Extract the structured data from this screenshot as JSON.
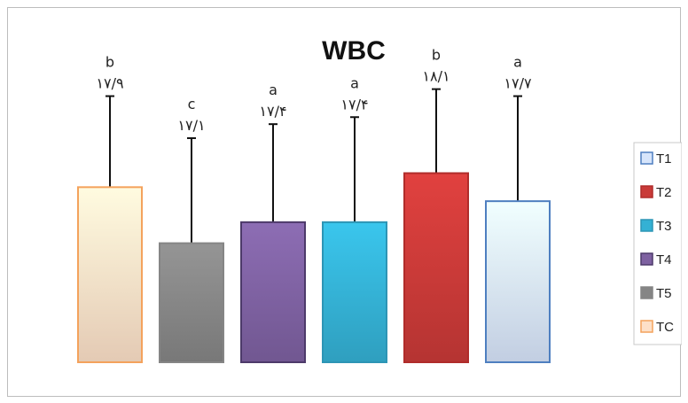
{
  "chart_data": {
    "type": "bar",
    "title": "WBC",
    "xlabel": "",
    "ylabel": "",
    "categories": [
      "TC",
      "T5",
      "T4",
      "T3",
      "T2",
      "T1"
    ],
    "values": [
      17.9,
      17.1,
      17.4,
      17.4,
      18.1,
      17.7
    ],
    "value_labels": [
      "۱۷/۹",
      "۱۷/۱",
      "۱۷/۴",
      "۱۷/۴",
      "۱۸/۱",
      "۱۷/۷"
    ],
    "significance_letters": [
      "b",
      "c",
      "a",
      "a",
      "b",
      "a"
    ],
    "error_values": [
      19.2,
      18.6,
      18.8,
      18.9,
      19.3,
      19.2
    ],
    "ylim": [
      15.4,
      19.7
    ],
    "grid": false,
    "legend_position": "right",
    "legend": [
      "T1",
      "T2",
      "T3",
      "T4",
      "T5",
      "TC"
    ],
    "colors": {
      "TC": "#fde0c8",
      "T5": "#858585",
      "T4": "#7e61a1",
      "T3": "#34b1d4",
      "T2": "#c93a38",
      "T1": "#d7e5fb"
    },
    "border_colors": {
      "TC": "#f4a25c",
      "T5": "#858585",
      "T4": "#4d3a6a",
      "T3": "#2d95b5",
      "T2": "#b02c2a",
      "T1": "#4e7fc0"
    }
  }
}
